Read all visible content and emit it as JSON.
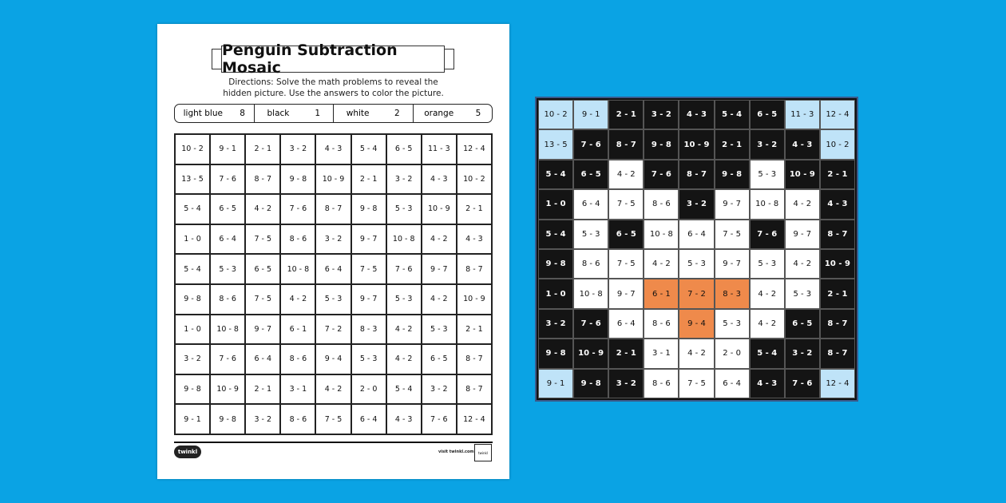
{
  "worksheet": {
    "title": "Penguin Subtraction Mosaic",
    "directions_line1": "Directions: Solve the math problems to reveal the",
    "directions_line2": "hidden picture. Use the answers to color the picture.",
    "key": [
      {
        "color": "light blue",
        "value": "8"
      },
      {
        "color": "black",
        "value": "1"
      },
      {
        "color": "white",
        "value": "2"
      },
      {
        "color": "orange",
        "value": "5"
      }
    ],
    "logo": "twinkl",
    "url": "visit twinkl.com",
    "badge": "twinkl"
  },
  "colors": {
    "light blue": "#bfe3f8",
    "black": "#141414",
    "white": "#ffffff",
    "orange": "#ef8a4b",
    "background": "#0aa3e4"
  },
  "grid": [
    [
      "10 - 2",
      "9 - 1",
      "2 - 1",
      "3 - 2",
      "4 - 3",
      "5 - 4",
      "6 - 5",
      "11 - 3",
      "12 - 4"
    ],
    [
      "13 - 5",
      "7 - 6",
      "8 - 7",
      "9 - 8",
      "10 - 9",
      "2 - 1",
      "3 - 2",
      "4 - 3",
      "10 - 2"
    ],
    [
      "5 - 4",
      "6 - 5",
      "4 - 2",
      "7 - 6",
      "8 - 7",
      "9 - 8",
      "5 - 3",
      "10 - 9",
      "2 - 1"
    ],
    [
      "1 - 0",
      "6 - 4",
      "7 - 5",
      "8 - 6",
      "3 - 2",
      "9 - 7",
      "10 - 8",
      "4 - 2",
      "4 - 3"
    ],
    [
      "5 - 4",
      "5 - 3",
      "6 - 5",
      "10 - 8",
      "6 - 4",
      "7 - 5",
      "7 - 6",
      "9 - 7",
      "8 - 7"
    ],
    [
      "9 - 8",
      "8 - 6",
      "7 - 5",
      "4 - 2",
      "5 - 3",
      "9 - 7",
      "5 - 3",
      "4 - 2",
      "10 - 9"
    ],
    [
      "1 - 0",
      "10 - 8",
      "9 - 7",
      "6 - 1",
      "7 - 2",
      "8 - 3",
      "4 - 2",
      "5 - 3",
      "2 - 1"
    ],
    [
      "3 - 2",
      "7 - 6",
      "6 - 4",
      "8 - 6",
      "9 - 4",
      "5 - 3",
      "4 - 2",
      "6 - 5",
      "8 - 7"
    ],
    [
      "9 - 8",
      "10 - 9",
      "2 - 1",
      "3 - 1",
      "4 - 2",
      "2 - 0",
      "5 - 4",
      "3 - 2",
      "8 - 7"
    ],
    [
      "9 - 1",
      "9 - 8",
      "3 - 2",
      "8 - 6",
      "7 - 5",
      "6 - 4",
      "4 - 3",
      "7 - 6",
      "12 - 4"
    ]
  ]
}
